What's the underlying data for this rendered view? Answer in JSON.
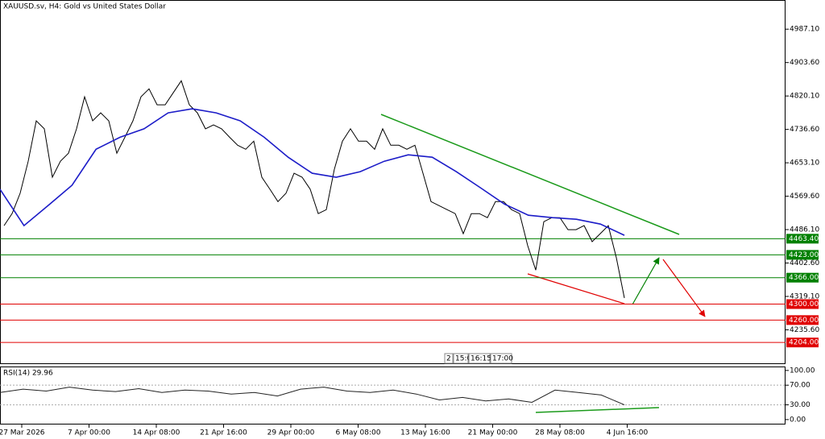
{
  "chart_data": {
    "type": "line",
    "title": "XAUUSD.sv, H4:  Gold vs United States Dollar",
    "ylim": [
      4150,
      5060
    ],
    "yticks": [
      {
        "value": 4987.1,
        "label": "4987.10"
      },
      {
        "value": 4903.6,
        "label": "4903.60"
      },
      {
        "value": 4820.1,
        "label": "4820.10"
      },
      {
        "value": 4736.6,
        "label": "4736.60"
      },
      {
        "value": 4653.1,
        "label": "4653.10"
      },
      {
        "value": 4569.6,
        "label": "4569.60"
      },
      {
        "value": 4486.1,
        "label": "4486.10"
      },
      {
        "value": 4402.6,
        "label": "4402.60"
      },
      {
        "value": 4319.1,
        "label": "4319.10"
      },
      {
        "value": 4235.6,
        "label": "4235.60"
      }
    ],
    "levels": [
      {
        "value": 4463.4,
        "label": "4463.40",
        "color": "#008000"
      },
      {
        "value": 4423,
        "label": "4423.00",
        "color": "#008000"
      },
      {
        "value": 4366,
        "label": "4366.00",
        "color": "#008000"
      },
      {
        "value": 4300,
        "label": "4300.00",
        "color": "#e00000"
      },
      {
        "value": 4260,
        "label": "4260.00",
        "color": "#e00000"
      },
      {
        "value": 4204,
        "label": "4204.00",
        "color": "#e00000"
      }
    ],
    "x_labels": [
      "27 Mar 2026",
      "7 Apr 00:00",
      "14 Apr 08:00",
      "21 Apr 16:00",
      "29 Apr 00:00",
      "6 May 08:00",
      "13 May 16:00",
      "21 May 00:00",
      "28 May 08:00",
      "4 Jun 16:00"
    ],
    "time_overlay": [
      "2",
      "15:0",
      "16:15",
      "17:00"
    ],
    "price": {
      "color": "#000000",
      "values": [
        4496,
        4526,
        4577,
        4657,
        4758,
        4738,
        4617,
        4657,
        4677,
        4738,
        4818,
        4758,
        4778,
        4758,
        4677,
        4717,
        4758,
        4818,
        4838,
        4798,
        4798,
        4828,
        4858,
        4798,
        4778,
        4738,
        4748,
        4738,
        4717,
        4697,
        4687,
        4707,
        4617,
        4587,
        4556,
        4577,
        4627,
        4617,
        4587,
        4526,
        4536,
        4637,
        4707,
        4738,
        4707,
        4707,
        4687,
        4738,
        4697,
        4697,
        4687,
        4697,
        4627,
        4556,
        4546,
        4536,
        4526,
        4476,
        4526,
        4526,
        4516,
        4556,
        4556,
        4536,
        4526,
        4446,
        4385,
        4506,
        4516,
        4516,
        4486,
        4486,
        4496,
        4456,
        4476,
        4496,
        4416,
        4315
      ]
    },
    "ma": {
      "color": "#1c1cc8",
      "values": [
        4587,
        4496,
        4546,
        4597,
        4687,
        4717,
        4738,
        4778,
        4788,
        4778,
        4758,
        4717,
        4667,
        4627,
        4617,
        4631,
        4657,
        4673,
        4667,
        4631,
        4591,
        4550,
        4522,
        4516,
        4512,
        4500,
        4472
      ]
    },
    "rsi": {
      "label": "RSI(14) 29.96",
      "color": "#222222",
      "ylim": [
        -10,
        108
      ],
      "yticks": [
        {
          "value": 100,
          "label": "100.00"
        },
        {
          "value": 70,
          "label": "70.00"
        },
        {
          "value": 30,
          "label": "30.00"
        },
        {
          "value": 0,
          "label": "0.00"
        }
      ],
      "values": [
        55,
        62,
        58,
        66,
        60,
        57,
        63,
        55,
        60,
        58,
        52,
        55,
        48,
        62,
        66,
        58,
        55,
        60,
        52,
        40,
        45,
        38,
        42,
        35,
        60,
        55,
        50,
        29.96
      ]
    }
  }
}
